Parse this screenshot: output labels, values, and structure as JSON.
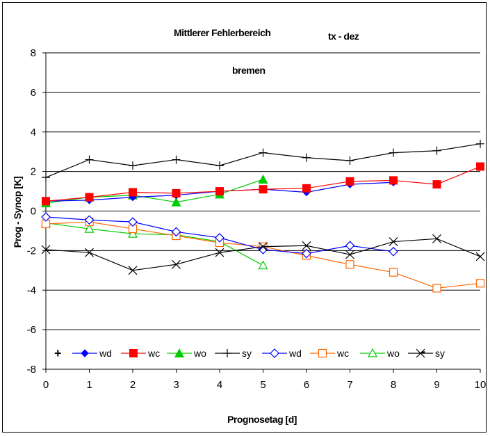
{
  "chart_data": {
    "type": "line",
    "title": "Mittlerer Fehlerbereich",
    "subtitle": "tx - dez",
    "station": "bremen",
    "xlabel": "Prognosetag [d]",
    "ylabel": "Prog - Synop [K]",
    "xlim": [
      0,
      10
    ],
    "ylim": [
      -8,
      8
    ],
    "x_ticks": [
      "0",
      "1",
      "2",
      "3",
      "4",
      "5",
      "6",
      "7",
      "8",
      "9",
      "10"
    ],
    "y_ticks": [
      "-8",
      "-6",
      "-4",
      "-2",
      "0",
      "2",
      "4",
      "6",
      "8"
    ],
    "grid": "horizontal",
    "legend_position": "bottom",
    "legend_plus": "+",
    "legend_minus": "-",
    "series": [
      {
        "name": "wd",
        "color": "#0000ff",
        "marker": "diamond-filled",
        "x": [
          0,
          1,
          2,
          3,
          4,
          5,
          6,
          7,
          8
        ],
        "values": [
          0.5,
          0.55,
          0.7,
          0.8,
          1.0,
          1.1,
          0.95,
          1.35,
          1.45
        ]
      },
      {
        "name": "wc",
        "color": "#ff0000",
        "marker": "square-filled",
        "x": [
          0,
          1,
          2,
          3,
          4,
          5,
          6,
          7,
          8,
          9,
          10
        ],
        "values": [
          0.5,
          0.7,
          0.95,
          0.9,
          1.0,
          1.1,
          1.15,
          1.5,
          1.55,
          1.35,
          2.25
        ]
      },
      {
        "name": "wo",
        "color": "#00cc00",
        "marker": "triangle-filled",
        "x": [
          0,
          1,
          2,
          3,
          4,
          5
        ],
        "values": [
          0.4,
          0.7,
          0.8,
          0.45,
          0.85,
          1.6
        ]
      },
      {
        "name": "sy",
        "color": "#000000",
        "marker": "plus",
        "x": [
          0,
          1,
          2,
          3,
          4,
          5,
          6,
          7,
          8,
          9,
          10
        ],
        "values": [
          1.7,
          2.6,
          2.3,
          2.6,
          2.3,
          2.95,
          2.7,
          2.55,
          2.95,
          3.05,
          3.4
        ]
      },
      {
        "name": "wd",
        "color": "#0000ff",
        "marker": "diamond-open",
        "x": [
          0,
          1,
          2,
          3,
          4,
          5,
          6,
          7,
          8
        ],
        "values": [
          -0.3,
          -0.45,
          -0.55,
          -1.05,
          -1.35,
          -1.95,
          -2.15,
          -1.75,
          -2.05
        ]
      },
      {
        "name": "wc",
        "color": "#ff6600",
        "marker": "square-open",
        "x": [
          0,
          1,
          2,
          3,
          4,
          5,
          6,
          7,
          8,
          9,
          10
        ],
        "values": [
          -0.65,
          -0.55,
          -0.9,
          -1.25,
          -1.6,
          -1.8,
          -2.25,
          -2.7,
          -3.1,
          -3.9,
          -3.65
        ]
      },
      {
        "name": "wo",
        "color": "#00cc00",
        "marker": "triangle-open",
        "x": [
          0,
          1,
          2,
          3,
          4,
          5
        ],
        "values": [
          -0.6,
          -0.9,
          -1.15,
          -1.2,
          -1.55,
          -2.75
        ]
      },
      {
        "name": "sy",
        "color": "#000000",
        "marker": "x",
        "x": [
          0,
          1,
          2,
          3,
          4,
          5,
          6,
          7,
          8,
          9,
          10
        ],
        "values": [
          -1.95,
          -2.1,
          -3.0,
          -2.7,
          -2.1,
          -1.8,
          -1.75,
          -2.2,
          -1.55,
          -1.4,
          -2.3
        ]
      }
    ]
  }
}
